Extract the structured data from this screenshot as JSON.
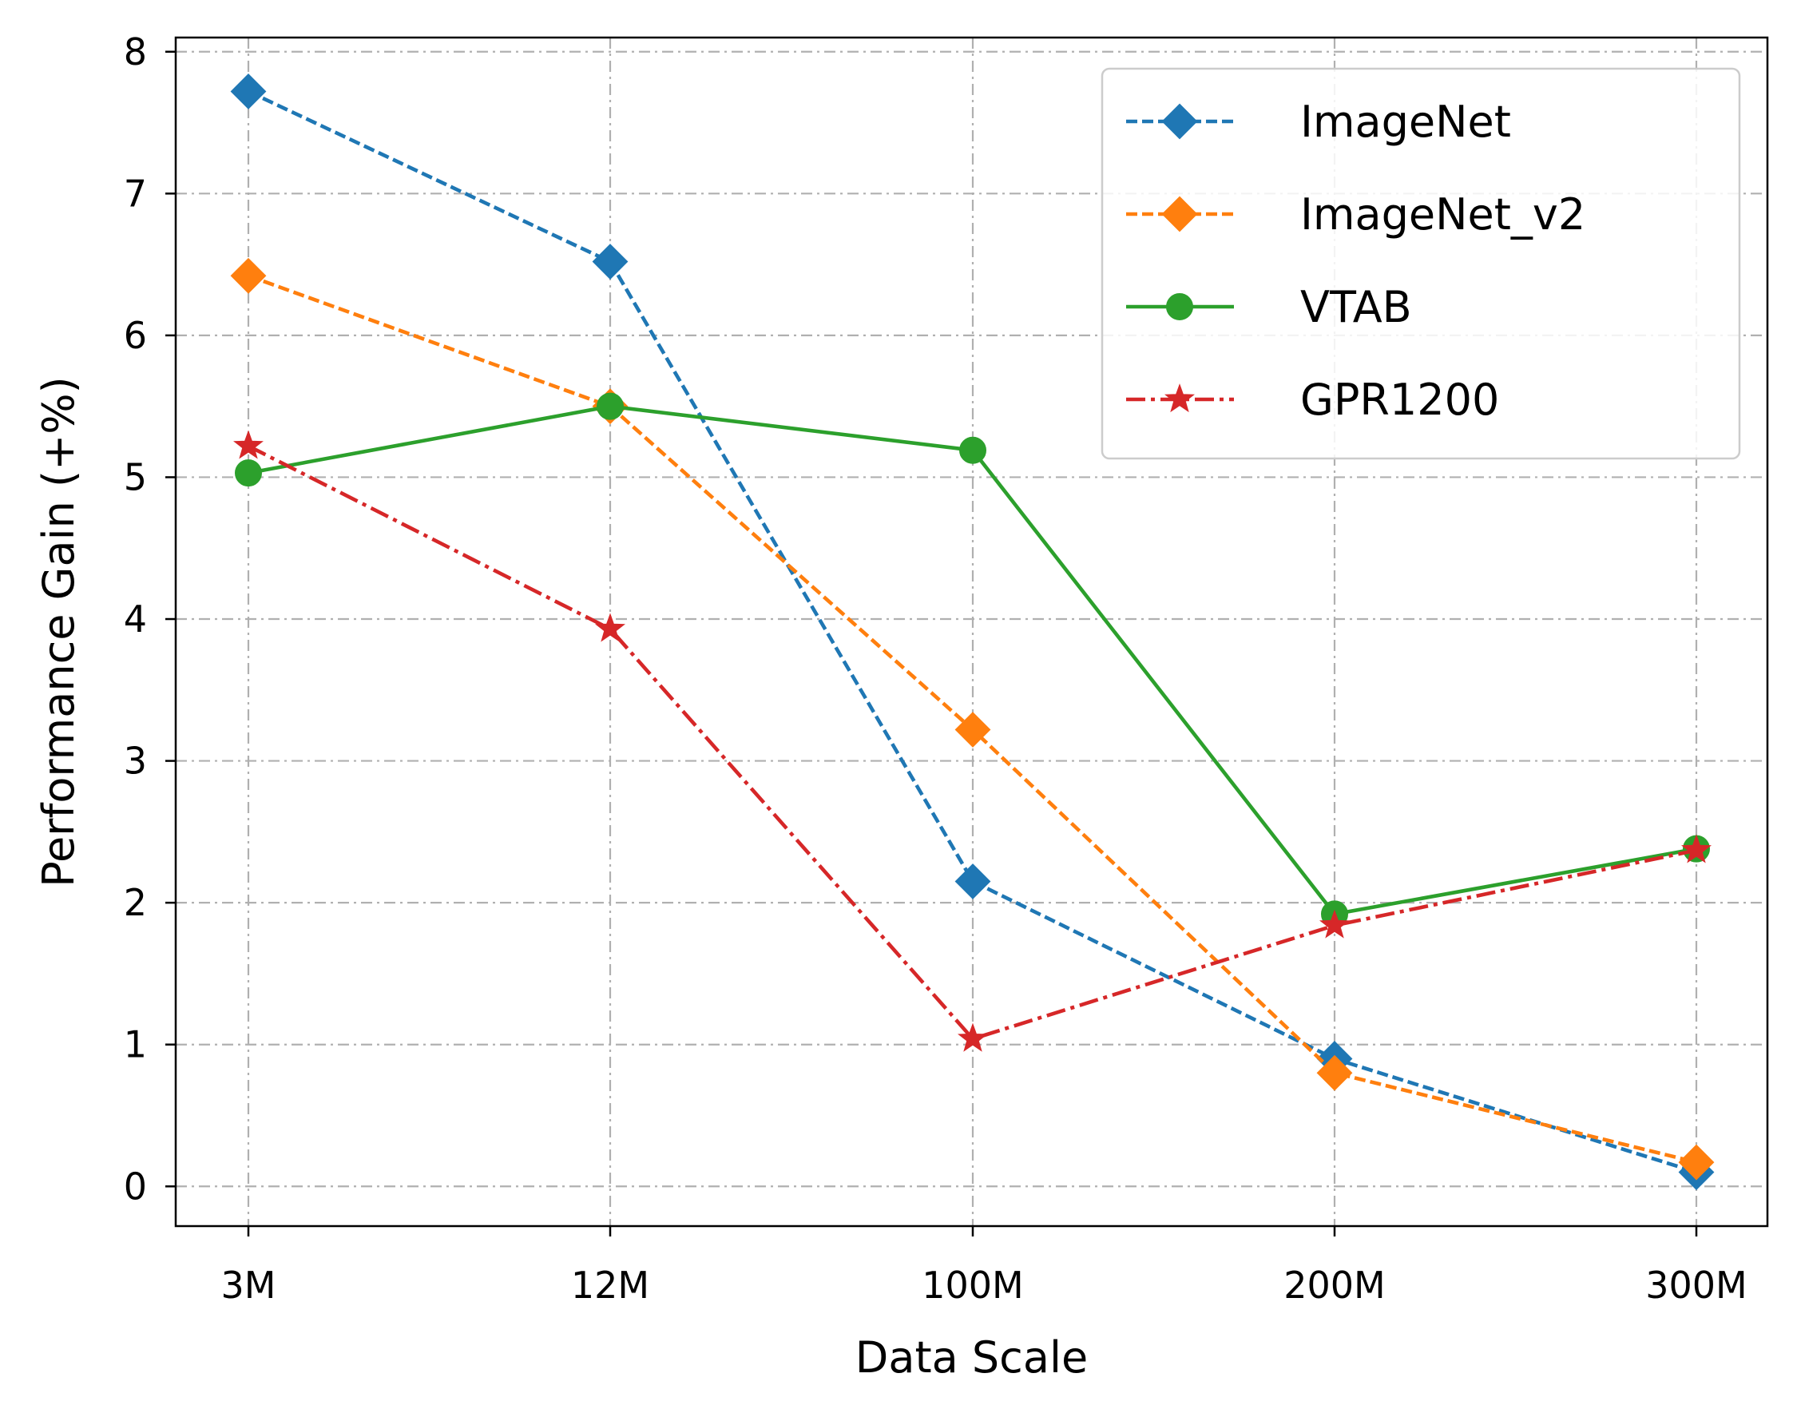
{
  "chart_data": {
    "type": "line",
    "title": "",
    "xlabel": "Data Scale",
    "ylabel": "Performance Gain (+%)",
    "categories": [
      "3M",
      "12M",
      "100M",
      "200M",
      "300M"
    ],
    "ylim": [
      -0.28,
      8.1
    ],
    "yticks": [
      0,
      1,
      2,
      3,
      4,
      5,
      6,
      7,
      8
    ],
    "grid": true,
    "legend_position": "top-right",
    "series": [
      {
        "name": "ImageNet",
        "color": "#1f77b4",
        "marker": "diamond",
        "linestyle": "dashed",
        "values": [
          7.72,
          6.52,
          2.15,
          0.9,
          0.1
        ]
      },
      {
        "name": "ImageNet_v2",
        "color": "#ff7f0e",
        "marker": "diamond",
        "linestyle": "dashed",
        "values": [
          6.42,
          5.5,
          3.22,
          0.8,
          0.17
        ]
      },
      {
        "name": "VTAB",
        "color": "#2ca02c",
        "marker": "circle",
        "linestyle": "solid",
        "values": [
          5.03,
          5.5,
          5.19,
          1.92,
          2.38
        ]
      },
      {
        "name": "GPR1200",
        "color": "#d62728",
        "marker": "star",
        "linestyle": "dashdot",
        "values": [
          5.22,
          3.93,
          1.04,
          1.84,
          2.37
        ]
      }
    ]
  }
}
